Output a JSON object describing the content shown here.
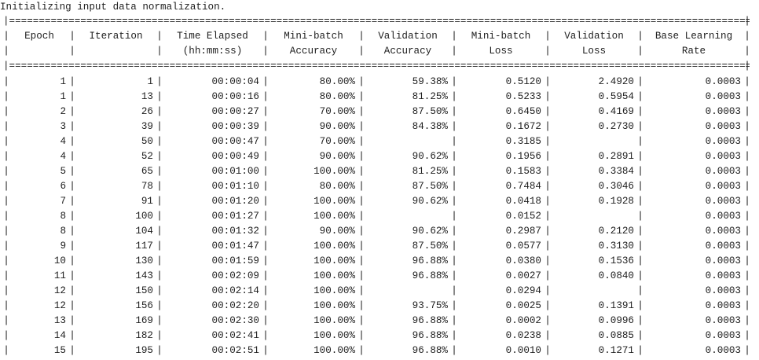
{
  "status_line": "Initializing input data normalization.",
  "columns": [
    {
      "line1": "Epoch",
      "line2": ""
    },
    {
      "line1": "Iteration",
      "line2": ""
    },
    {
      "line1": "Time Elapsed",
      "line2": "(hh:mm:ss)"
    },
    {
      "line1": "Mini-batch",
      "line2": "Accuracy"
    },
    {
      "line1": "Validation",
      "line2": "Accuracy"
    },
    {
      "line1": "Mini-batch",
      "line2": "Loss"
    },
    {
      "line1": "Validation",
      "line2": "Loss"
    },
    {
      "line1": "Base Learning",
      "line2": "Rate"
    }
  ],
  "rows": [
    {
      "epoch": "1",
      "iteration": "1",
      "time": "00:00:04",
      "mb_acc": "80.00%",
      "val_acc": "59.38%",
      "mb_loss": "0.5120",
      "val_loss": "2.4920",
      "lr": "0.0003"
    },
    {
      "epoch": "1",
      "iteration": "13",
      "time": "00:00:16",
      "mb_acc": "80.00%",
      "val_acc": "81.25%",
      "mb_loss": "0.5233",
      "val_loss": "0.5954",
      "lr": "0.0003"
    },
    {
      "epoch": "2",
      "iteration": "26",
      "time": "00:00:27",
      "mb_acc": "70.00%",
      "val_acc": "87.50%",
      "mb_loss": "0.6450",
      "val_loss": "0.4169",
      "lr": "0.0003"
    },
    {
      "epoch": "3",
      "iteration": "39",
      "time": "00:00:39",
      "mb_acc": "90.00%",
      "val_acc": "84.38%",
      "mb_loss": "0.1672",
      "val_loss": "0.2730",
      "lr": "0.0003"
    },
    {
      "epoch": "4",
      "iteration": "50",
      "time": "00:00:47",
      "mb_acc": "70.00%",
      "val_acc": "",
      "mb_loss": "0.3185",
      "val_loss": "",
      "lr": "0.0003"
    },
    {
      "epoch": "4",
      "iteration": "52",
      "time": "00:00:49",
      "mb_acc": "90.00%",
      "val_acc": "90.62%",
      "mb_loss": "0.1956",
      "val_loss": "0.2891",
      "lr": "0.0003"
    },
    {
      "epoch": "5",
      "iteration": "65",
      "time": "00:01:00",
      "mb_acc": "100.00%",
      "val_acc": "81.25%",
      "mb_loss": "0.1583",
      "val_loss": "0.3384",
      "lr": "0.0003"
    },
    {
      "epoch": "6",
      "iteration": "78",
      "time": "00:01:10",
      "mb_acc": "80.00%",
      "val_acc": "87.50%",
      "mb_loss": "0.7484",
      "val_loss": "0.3046",
      "lr": "0.0003"
    },
    {
      "epoch": "7",
      "iteration": "91",
      "time": "00:01:20",
      "mb_acc": "100.00%",
      "val_acc": "90.62%",
      "mb_loss": "0.0418",
      "val_loss": "0.1928",
      "lr": "0.0003"
    },
    {
      "epoch": "8",
      "iteration": "100",
      "time": "00:01:27",
      "mb_acc": "100.00%",
      "val_acc": "",
      "mb_loss": "0.0152",
      "val_loss": "",
      "lr": "0.0003"
    },
    {
      "epoch": "8",
      "iteration": "104",
      "time": "00:01:32",
      "mb_acc": "90.00%",
      "val_acc": "90.62%",
      "mb_loss": "0.2987",
      "val_loss": "0.2120",
      "lr": "0.0003"
    },
    {
      "epoch": "9",
      "iteration": "117",
      "time": "00:01:47",
      "mb_acc": "100.00%",
      "val_acc": "87.50%",
      "mb_loss": "0.0577",
      "val_loss": "0.3130",
      "lr": "0.0003"
    },
    {
      "epoch": "10",
      "iteration": "130",
      "time": "00:01:59",
      "mb_acc": "100.00%",
      "val_acc": "96.88%",
      "mb_loss": "0.0380",
      "val_loss": "0.1536",
      "lr": "0.0003"
    },
    {
      "epoch": "11",
      "iteration": "143",
      "time": "00:02:09",
      "mb_acc": "100.00%",
      "val_acc": "96.88%",
      "mb_loss": "0.0027",
      "val_loss": "0.0840",
      "lr": "0.0003"
    },
    {
      "epoch": "12",
      "iteration": "150",
      "time": "00:02:14",
      "mb_acc": "100.00%",
      "val_acc": "",
      "mb_loss": "0.0294",
      "val_loss": "",
      "lr": "0.0003"
    },
    {
      "epoch": "12",
      "iteration": "156",
      "time": "00:02:20",
      "mb_acc": "100.00%",
      "val_acc": "93.75%",
      "mb_loss": "0.0025",
      "val_loss": "0.1391",
      "lr": "0.0003"
    },
    {
      "epoch": "13",
      "iteration": "169",
      "time": "00:02:30",
      "mb_acc": "100.00%",
      "val_acc": "96.88%",
      "mb_loss": "0.0002",
      "val_loss": "0.0996",
      "lr": "0.0003"
    },
    {
      "epoch": "14",
      "iteration": "182",
      "time": "00:02:41",
      "mb_acc": "100.00%",
      "val_acc": "96.88%",
      "mb_loss": "0.0238",
      "val_loss": "0.0885",
      "lr": "0.0003"
    },
    {
      "epoch": "15",
      "iteration": "195",
      "time": "00:02:51",
      "mb_acc": "100.00%",
      "val_acc": "96.88%",
      "mb_loss": "0.0010",
      "val_loss": "0.1271",
      "lr": "0.0003"
    }
  ]
}
